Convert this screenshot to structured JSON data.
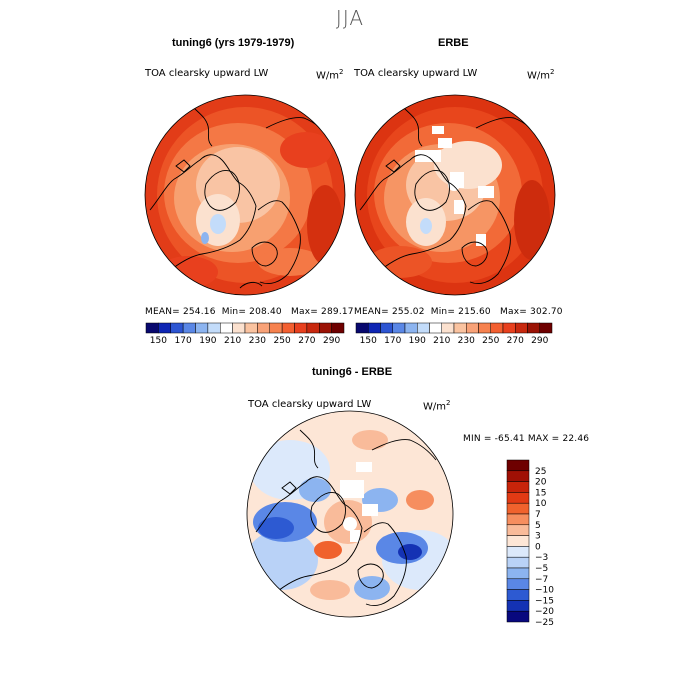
{
  "figure": {
    "season": "JJA"
  },
  "panels": [
    {
      "title": "tuning6 (yrs 1979-1979)",
      "field": "TOA clearsky upward LW",
      "units": "W/m",
      "units_exp": "2",
      "mean_label": "MEAN= 254.16",
      "min_label": "Min= 208.40",
      "max_label": "Max= 289.17"
    },
    {
      "title": "ERBE",
      "field": "TOA clearsky upward LW",
      "units": "W/m",
      "units_exp": "2",
      "mean_label": "MEAN= 255.02",
      "min_label": "Min= 215.60",
      "max_label": "Max= 302.70"
    }
  ],
  "diff_panel": {
    "title": "tuning6 - ERBE",
    "field": "TOA clearsky upward LW",
    "units": "W/m",
    "units_exp": "2",
    "minmax_label": "MIN = -65.41 MAX =  22.46"
  },
  "chart_data": [
    {
      "type": "heatmap",
      "projection": "north polar stereographic",
      "title": "tuning6 (yrs 1979-1979)",
      "variable": "TOA clearsky upward LW",
      "units": "W/m^2",
      "mean": 254.16,
      "min": 208.4,
      "max": 289.17,
      "colorbar_levels": [
        140,
        150,
        160,
        170,
        180,
        190,
        200,
        210,
        220,
        230,
        240,
        250,
        260,
        270,
        280,
        290,
        300
      ],
      "colorbar_tick_labels": [
        "150",
        "170",
        "190",
        "210",
        "230",
        "250",
        "270",
        "290"
      ]
    },
    {
      "type": "heatmap",
      "projection": "north polar stereographic",
      "title": "ERBE",
      "variable": "TOA clearsky upward LW",
      "units": "W/m^2",
      "mean": 255.02,
      "min": 215.6,
      "max": 302.7,
      "colorbar_levels": [
        140,
        150,
        160,
        170,
        180,
        190,
        200,
        210,
        220,
        230,
        240,
        250,
        260,
        270,
        280,
        290,
        300
      ],
      "colorbar_tick_labels": [
        "150",
        "170",
        "190",
        "210",
        "230",
        "250",
        "270",
        "290"
      ]
    },
    {
      "type": "heatmap",
      "projection": "north polar stereographic",
      "title": "tuning6 - ERBE",
      "variable": "TOA clearsky upward LW",
      "units": "W/m^2",
      "min": -65.41,
      "max": 22.46,
      "colorbar_levels": [
        -25,
        -20,
        -15,
        -10,
        -7,
        -5,
        -3,
        0,
        3,
        5,
        7,
        10,
        15,
        20,
        25
      ],
      "colorbar_tick_labels": [
        "25",
        "20",
        "15",
        "10",
        "7",
        "5",
        "3",
        "0",
        "−3",
        "−5",
        "−7",
        "−10",
        "−15",
        "−20",
        "−25"
      ]
    }
  ],
  "palettes": {
    "abs": [
      "#08086e",
      "#0f26b4",
      "#2d55d2",
      "#5a87e6",
      "#8cb4f0",
      "#c3dcfa",
      "#ffffff",
      "#fbe1cf",
      "#fac3a0",
      "#f8a278",
      "#f6824f",
      "#f35f30",
      "#e8401e",
      "#c8280e",
      "#9b1305",
      "#6e0000"
    ],
    "diff": [
      "#6e0000",
      "#a01005",
      "#c8240a",
      "#e23a14",
      "#f0622d",
      "#f68e5f",
      "#f9bb9a",
      "#fde6d6",
      "#dce9fb",
      "#b9d2f7",
      "#8cb4f0",
      "#5a87e6",
      "#2d5ad2",
      "#1432b4",
      "#08087e"
    ]
  }
}
